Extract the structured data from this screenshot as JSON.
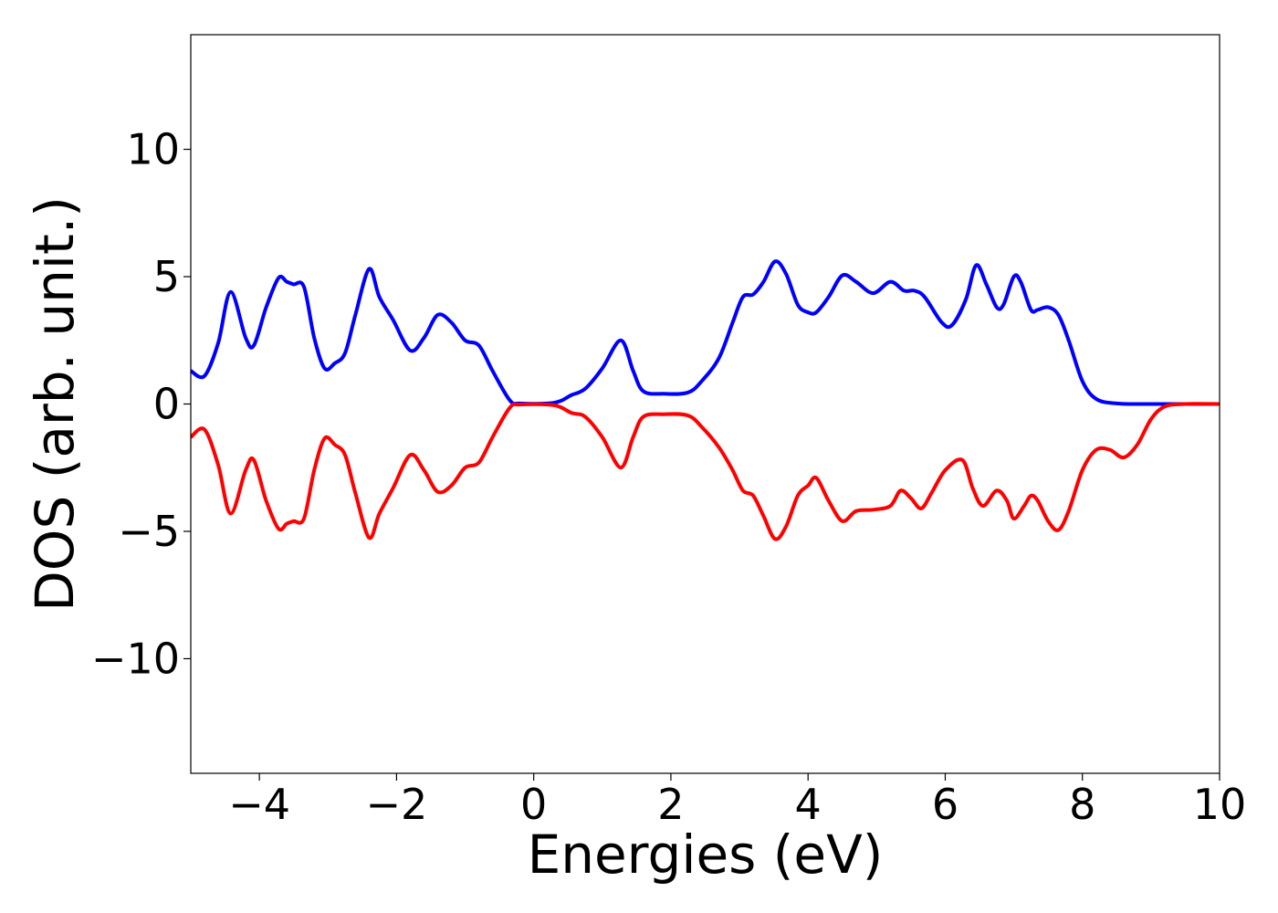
{
  "chart_data": {
    "type": "line",
    "title": "",
    "xlabel": "Energies (eV)",
    "ylabel": "DOS (arb. unit.)",
    "xlim": [
      -5,
      10
    ],
    "ylim": [
      -14.5,
      14.5
    ],
    "xticks": [
      -4,
      -2,
      0,
      2,
      4,
      6,
      8,
      10
    ],
    "xtick_labels": [
      "−4",
      "−2",
      "0",
      "2",
      "4",
      "6",
      "8",
      "10"
    ],
    "yticks": [
      -10,
      -5,
      0,
      5,
      10
    ],
    "ytick_labels": [
      "−10",
      "−5",
      "0",
      "5",
      "10"
    ],
    "grid": false,
    "series": [
      {
        "color": "#0000ff",
        "points": [
          [
            -5,
            1.3
          ],
          [
            -4.8,
            1.1
          ],
          [
            -4.6,
            2.4
          ],
          [
            -4.42,
            4.4
          ],
          [
            -4.2,
            2.6
          ],
          [
            -4.08,
            2.3
          ],
          [
            -3.9,
            3.8
          ],
          [
            -3.72,
            4.95
          ],
          [
            -3.6,
            4.8
          ],
          [
            -3.5,
            4.7
          ],
          [
            -3.35,
            4.6
          ],
          [
            -3.2,
            2.6
          ],
          [
            -3.05,
            1.4
          ],
          [
            -2.9,
            1.6
          ],
          [
            -2.75,
            2.0
          ],
          [
            -2.6,
            3.5
          ],
          [
            -2.4,
            5.3
          ],
          [
            -2.25,
            4.2
          ],
          [
            -2.05,
            3.3
          ],
          [
            -1.8,
            2.1
          ],
          [
            -1.6,
            2.6
          ],
          [
            -1.4,
            3.5
          ],
          [
            -1.2,
            3.2
          ],
          [
            -1.0,
            2.5
          ],
          [
            -0.8,
            2.3
          ],
          [
            -0.6,
            1.3
          ],
          [
            -0.35,
            0.15
          ],
          [
            -0.2,
            0.02
          ],
          [
            0.3,
            0.05
          ],
          [
            0.55,
            0.35
          ],
          [
            0.75,
            0.6
          ],
          [
            1.0,
            1.4
          ],
          [
            1.27,
            2.5
          ],
          [
            1.45,
            1.3
          ],
          [
            1.6,
            0.5
          ],
          [
            1.9,
            0.4
          ],
          [
            2.25,
            0.45
          ],
          [
            2.45,
            0.9
          ],
          [
            2.7,
            1.8
          ],
          [
            2.9,
            3.2
          ],
          [
            3.05,
            4.2
          ],
          [
            3.2,
            4.3
          ],
          [
            3.35,
            4.8
          ],
          [
            3.52,
            5.6
          ],
          [
            3.68,
            5.1
          ],
          [
            3.85,
            3.9
          ],
          [
            4.0,
            3.6
          ],
          [
            4.12,
            3.6
          ],
          [
            4.3,
            4.2
          ],
          [
            4.5,
            5.05
          ],
          [
            4.7,
            4.8
          ],
          [
            4.95,
            4.35
          ],
          [
            5.2,
            4.8
          ],
          [
            5.4,
            4.45
          ],
          [
            5.55,
            4.45
          ],
          [
            5.7,
            4.2
          ],
          [
            5.95,
            3.2
          ],
          [
            6.1,
            3.1
          ],
          [
            6.3,
            4.1
          ],
          [
            6.45,
            5.45
          ],
          [
            6.6,
            4.7
          ],
          [
            6.75,
            3.8
          ],
          [
            6.85,
            3.9
          ],
          [
            7.0,
            5.0
          ],
          [
            7.1,
            4.8
          ],
          [
            7.25,
            3.7
          ],
          [
            7.35,
            3.7
          ],
          [
            7.5,
            3.8
          ],
          [
            7.65,
            3.5
          ],
          [
            7.8,
            2.5
          ],
          [
            8.0,
            0.9
          ],
          [
            8.2,
            0.2
          ],
          [
            8.5,
            0.02
          ],
          [
            9.0,
            0.0
          ],
          [
            10,
            0.0
          ]
        ]
      },
      {
        "color": "#ff0000",
        "points": [
          [
            -5,
            -1.3
          ],
          [
            -4.8,
            -1.0
          ],
          [
            -4.6,
            -2.4
          ],
          [
            -4.42,
            -4.3
          ],
          [
            -4.2,
            -2.6
          ],
          [
            -4.08,
            -2.2
          ],
          [
            -3.9,
            -3.8
          ],
          [
            -3.72,
            -4.9
          ],
          [
            -3.6,
            -4.7
          ],
          [
            -3.5,
            -4.6
          ],
          [
            -3.35,
            -4.5
          ],
          [
            -3.2,
            -2.6
          ],
          [
            -3.05,
            -1.35
          ],
          [
            -2.9,
            -1.6
          ],
          [
            -2.75,
            -2.0
          ],
          [
            -2.6,
            -3.5
          ],
          [
            -2.4,
            -5.25
          ],
          [
            -2.25,
            -4.3
          ],
          [
            -2.05,
            -3.3
          ],
          [
            -1.8,
            -2.0
          ],
          [
            -1.6,
            -2.6
          ],
          [
            -1.4,
            -3.45
          ],
          [
            -1.2,
            -3.2
          ],
          [
            -1.0,
            -2.5
          ],
          [
            -0.8,
            -2.3
          ],
          [
            -0.6,
            -1.3
          ],
          [
            -0.35,
            -0.15
          ],
          [
            -0.2,
            -0.02
          ],
          [
            0.3,
            -0.05
          ],
          [
            0.55,
            -0.35
          ],
          [
            0.75,
            -0.5
          ],
          [
            1.0,
            -1.3
          ],
          [
            1.27,
            -2.5
          ],
          [
            1.45,
            -1.3
          ],
          [
            1.6,
            -0.5
          ],
          [
            1.9,
            -0.4
          ],
          [
            2.25,
            -0.45
          ],
          [
            2.45,
            -0.9
          ],
          [
            2.7,
            -1.7
          ],
          [
            2.9,
            -2.6
          ],
          [
            3.05,
            -3.4
          ],
          [
            3.2,
            -3.6
          ],
          [
            3.35,
            -4.4
          ],
          [
            3.52,
            -5.3
          ],
          [
            3.68,
            -4.8
          ],
          [
            3.85,
            -3.6
          ],
          [
            4.0,
            -3.2
          ],
          [
            4.12,
            -2.9
          ],
          [
            4.3,
            -3.8
          ],
          [
            4.5,
            -4.6
          ],
          [
            4.7,
            -4.2
          ],
          [
            4.95,
            -4.15
          ],
          [
            5.2,
            -4.0
          ],
          [
            5.35,
            -3.4
          ],
          [
            5.5,
            -3.7
          ],
          [
            5.65,
            -4.1
          ],
          [
            5.8,
            -3.5
          ],
          [
            6.0,
            -2.6
          ],
          [
            6.25,
            -2.2
          ],
          [
            6.4,
            -3.3
          ],
          [
            6.55,
            -4.0
          ],
          [
            6.75,
            -3.4
          ],
          [
            6.9,
            -3.8
          ],
          [
            7.0,
            -4.5
          ],
          [
            7.15,
            -4.0
          ],
          [
            7.25,
            -3.6
          ],
          [
            7.35,
            -3.8
          ],
          [
            7.5,
            -4.6
          ],
          [
            7.65,
            -4.95
          ],
          [
            7.8,
            -4.2
          ],
          [
            8.0,
            -2.6
          ],
          [
            8.2,
            -1.8
          ],
          [
            8.4,
            -1.8
          ],
          [
            8.6,
            -2.1
          ],
          [
            8.8,
            -1.6
          ],
          [
            9.0,
            -0.6
          ],
          [
            9.2,
            -0.1
          ],
          [
            9.5,
            0.0
          ],
          [
            10,
            0.0
          ]
        ]
      }
    ]
  }
}
